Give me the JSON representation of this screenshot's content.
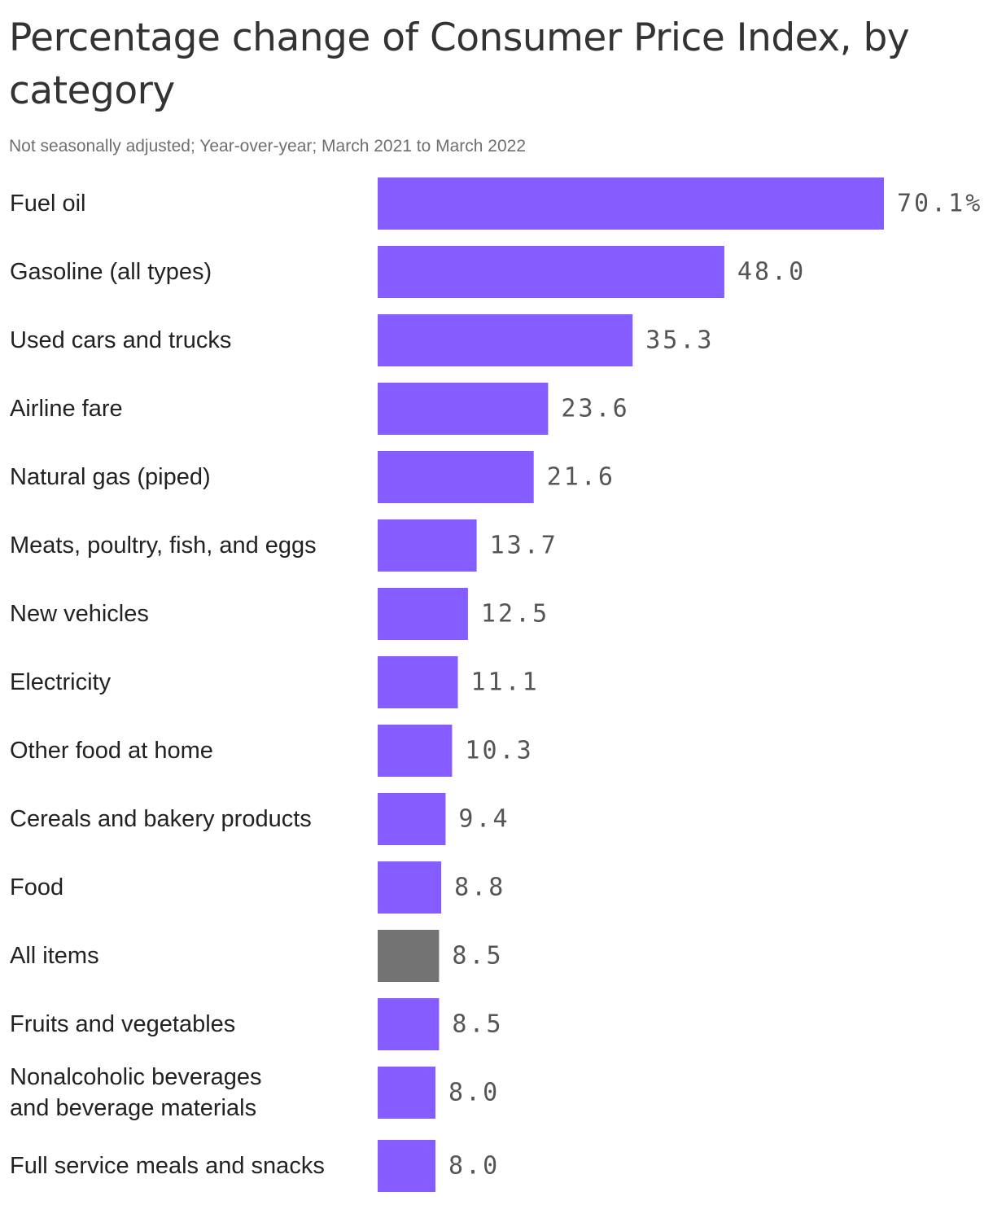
{
  "title": "Percentage change of Consumer Price Index, by category",
  "subtitle": "Not seasonally adjusted; Year-over-year; March 2021 to March 2022",
  "colors": {
    "bar": "#845cff",
    "highlight_bar": "#737373",
    "value_text": "#555555",
    "label_text": "#222222"
  },
  "chart_data": {
    "type": "bar",
    "orientation": "horizontal",
    "categories": [
      "Fuel oil",
      "Gasoline (all types)",
      "Used cars and trucks",
      "Airline fare",
      "Natural gas (piped)",
      "Meats, poultry, fish, and eggs",
      "New vehicles",
      "Electricity",
      "Other food at home",
      "Cereals and bakery products",
      "Food",
      "All items",
      "Fruits and vegetables",
      "Nonalcoholic beverages and beverage materials",
      "Full service meals and snacks"
    ],
    "category_label_lines": [
      [
        "Fuel oil"
      ],
      [
        "Gasoline (all types)"
      ],
      [
        "Used cars and trucks"
      ],
      [
        "Airline fare"
      ],
      [
        "Natural gas (piped)"
      ],
      [
        "Meats, poultry, fish, and eggs"
      ],
      [
        "New vehicles"
      ],
      [
        "Electricity"
      ],
      [
        "Other food at home"
      ],
      [
        "Cereals and bakery products"
      ],
      [
        "Food"
      ],
      [
        "All items"
      ],
      [
        "Fruits and vegetables"
      ],
      [
        "Nonalcoholic beverages",
        "and beverage materials"
      ],
      [
        "Full service meals and snacks"
      ]
    ],
    "values": [
      70.1,
      48.0,
      35.3,
      23.6,
      21.6,
      13.7,
      12.5,
      11.1,
      10.3,
      9.4,
      8.8,
      8.5,
      8.5,
      8.0,
      8.0
    ],
    "value_labels": [
      "70.1%",
      "48.0",
      "35.3",
      "23.6",
      "21.6",
      "13.7",
      "12.5",
      "11.1",
      "10.3",
      "9.4",
      "8.8",
      "8.5",
      "8.5",
      "8.0",
      "8.0"
    ],
    "highlighted_category": "All items",
    "xlim": [
      0,
      70.1
    ],
    "grid": false,
    "legend": "none"
  }
}
